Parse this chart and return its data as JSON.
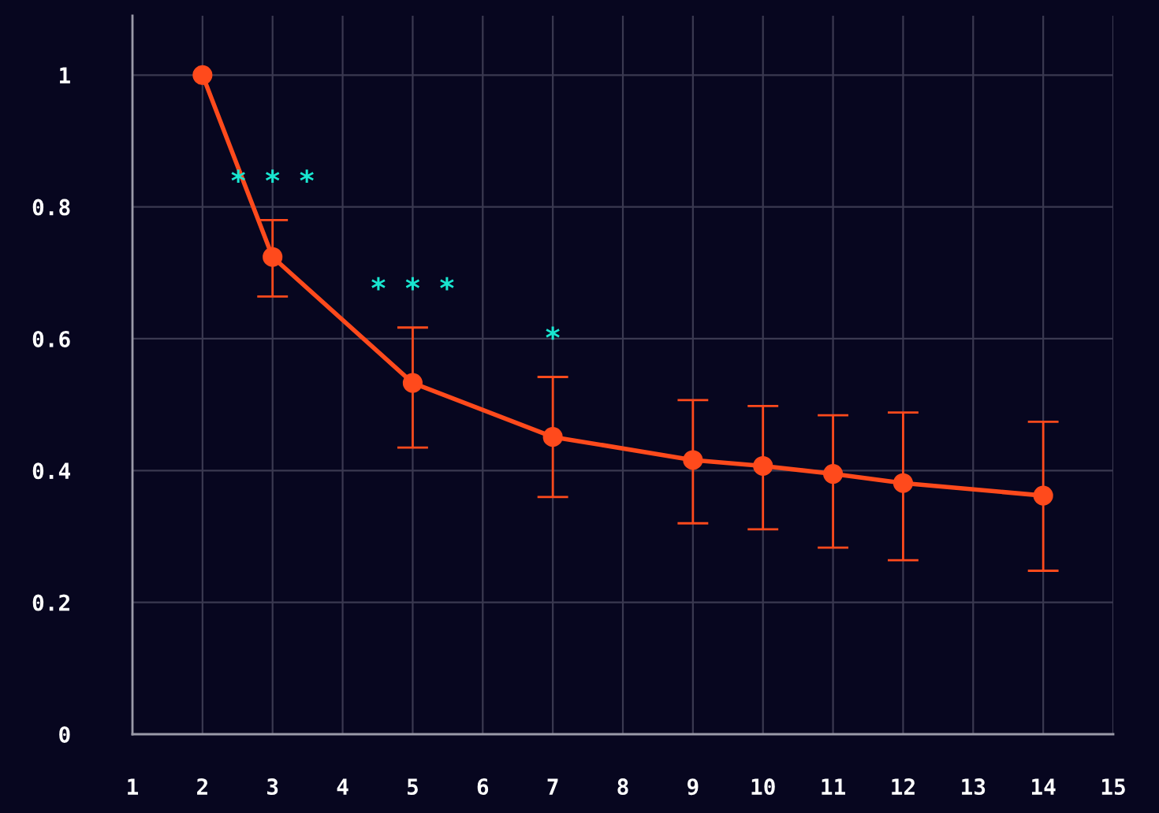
{
  "chart_data": {
    "type": "line",
    "x": [
      2,
      3,
      5,
      7,
      9,
      10,
      11,
      12,
      14
    ],
    "series": [
      {
        "color": "#ff4a1c",
        "values": [
          1,
          0.724,
          0.533,
          0.451,
          0.416,
          0.407,
          0.395,
          0.381,
          0.362
        ],
        "errors": [
          null,
          [
            0.664,
            0.78
          ],
          [
            0.435,
            0.617
          ],
          [
            0.36,
            0.542
          ],
          [
            0.32,
            0.507
          ],
          [
            0.311,
            0.498
          ],
          [
            0.283,
            0.484
          ],
          [
            0.264,
            0.488
          ],
          [
            0.248,
            0.474
          ]
        ]
      }
    ],
    "xlim": [
      1,
      15
    ],
    "xticks": [
      1,
      2,
      3,
      4,
      5,
      6,
      7,
      8,
      9,
      10,
      11,
      12,
      13,
      14,
      15
    ],
    "ylim": [
      0,
      1.09
    ],
    "yticks": [
      0,
      0.2,
      0.4,
      0.6,
      0.8,
      1
    ],
    "grid": true,
    "marker": "circle",
    "line_style": "solid",
    "annotations": [
      {
        "text": "* * *",
        "x": 3,
        "y": 0.78
      },
      {
        "text": "* * *",
        "x": 5,
        "y": 0.617
      },
      {
        "text": "*",
        "x": 7,
        "y": 0.542
      }
    ]
  }
}
